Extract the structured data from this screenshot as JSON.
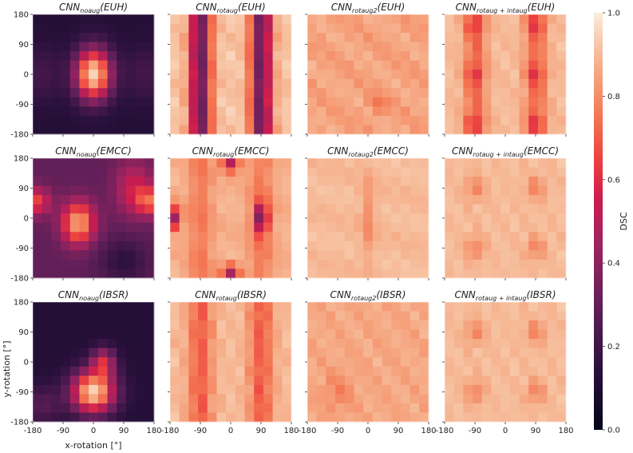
{
  "figure": {
    "xlabel": "x-rotation [°]",
    "ylabel": "y-rotation [°]",
    "colorbar_label": "DSC",
    "colorbar_ticks": [
      "0.0",
      "0.2",
      "0.4",
      "0.6",
      "0.8",
      "1.0"
    ]
  },
  "chart_data": {
    "type": "heatmap",
    "x_ticks": [
      -180,
      -90,
      0,
      90,
      180
    ],
    "y_ticks": [
      180,
      90,
      0,
      -90,
      -180
    ],
    "xlim": [
      -180,
      180
    ],
    "ylim": [
      -180,
      180
    ],
    "zlim": [
      0.0,
      1.0
    ],
    "colormap": "rocket",
    "panels": [
      {
        "base": "CNN",
        "sub": "noaug",
        "dataset": "EUH",
        "pattern": "noaug_euh",
        "peaks": [
          [
            0,
            0,
            0.95
          ]
        ],
        "level_range": [
          0.05,
          0.3
        ]
      },
      {
        "base": "CNN",
        "sub": "rotaug",
        "dataset": "EUH",
        "pattern": "bands",
        "band_centers": [
          -180,
          0,
          180
        ],
        "dip_centers": [
          -90,
          90
        ],
        "level_range": [
          0.35,
          0.9
        ]
      },
      {
        "base": "CNN",
        "sub": "rotaug2",
        "dataset": "EUH",
        "pattern": "noisy",
        "level_range": [
          0.72,
          0.9
        ]
      },
      {
        "base": "CNN",
        "sub": "rotaug + intaug",
        "dataset": "EUH",
        "pattern": "bands_spots",
        "level_range": [
          0.6,
          0.9
        ]
      },
      {
        "base": "CNN",
        "sub": "noaug",
        "dataset": "EMCC",
        "pattern": "noaug_emcc",
        "peaks": [
          [
            -45,
            -20,
            0.9
          ]
        ],
        "level_range": [
          0.2,
          0.5
        ]
      },
      {
        "base": "CNN",
        "sub": "rotaug",
        "dataset": "EMCC",
        "pattern": "bands_dark_spots",
        "level_range": [
          0.55,
          0.9
        ]
      },
      {
        "base": "CNN",
        "sub": "rotaug2",
        "dataset": "EMCC",
        "pattern": "pale_stripe",
        "level_range": [
          0.8,
          0.95
        ]
      },
      {
        "base": "CNN",
        "sub": "rotaug + intaug",
        "dataset": "EMCC",
        "pattern": "pale_spots",
        "level_range": [
          0.78,
          0.95
        ]
      },
      {
        "base": "CNN",
        "sub": "noaug",
        "dataset": "IBSR",
        "pattern": "noaug_ibsr",
        "peaks": [
          [
            0,
            -90,
            0.95
          ]
        ],
        "level_range": [
          0.05,
          0.3
        ]
      },
      {
        "base": "CNN",
        "sub": "rotaug",
        "dataset": "IBSR",
        "pattern": "bands_mild",
        "level_range": [
          0.65,
          0.9
        ]
      },
      {
        "base": "CNN",
        "sub": "rotaug2",
        "dataset": "IBSR",
        "pattern": "pale_noisy",
        "level_range": [
          0.75,
          0.9
        ]
      },
      {
        "base": "CNN",
        "sub": "rotaug + intaug",
        "dataset": "IBSR",
        "pattern": "pale_spots",
        "level_range": [
          0.75,
          0.9
        ]
      }
    ]
  }
}
